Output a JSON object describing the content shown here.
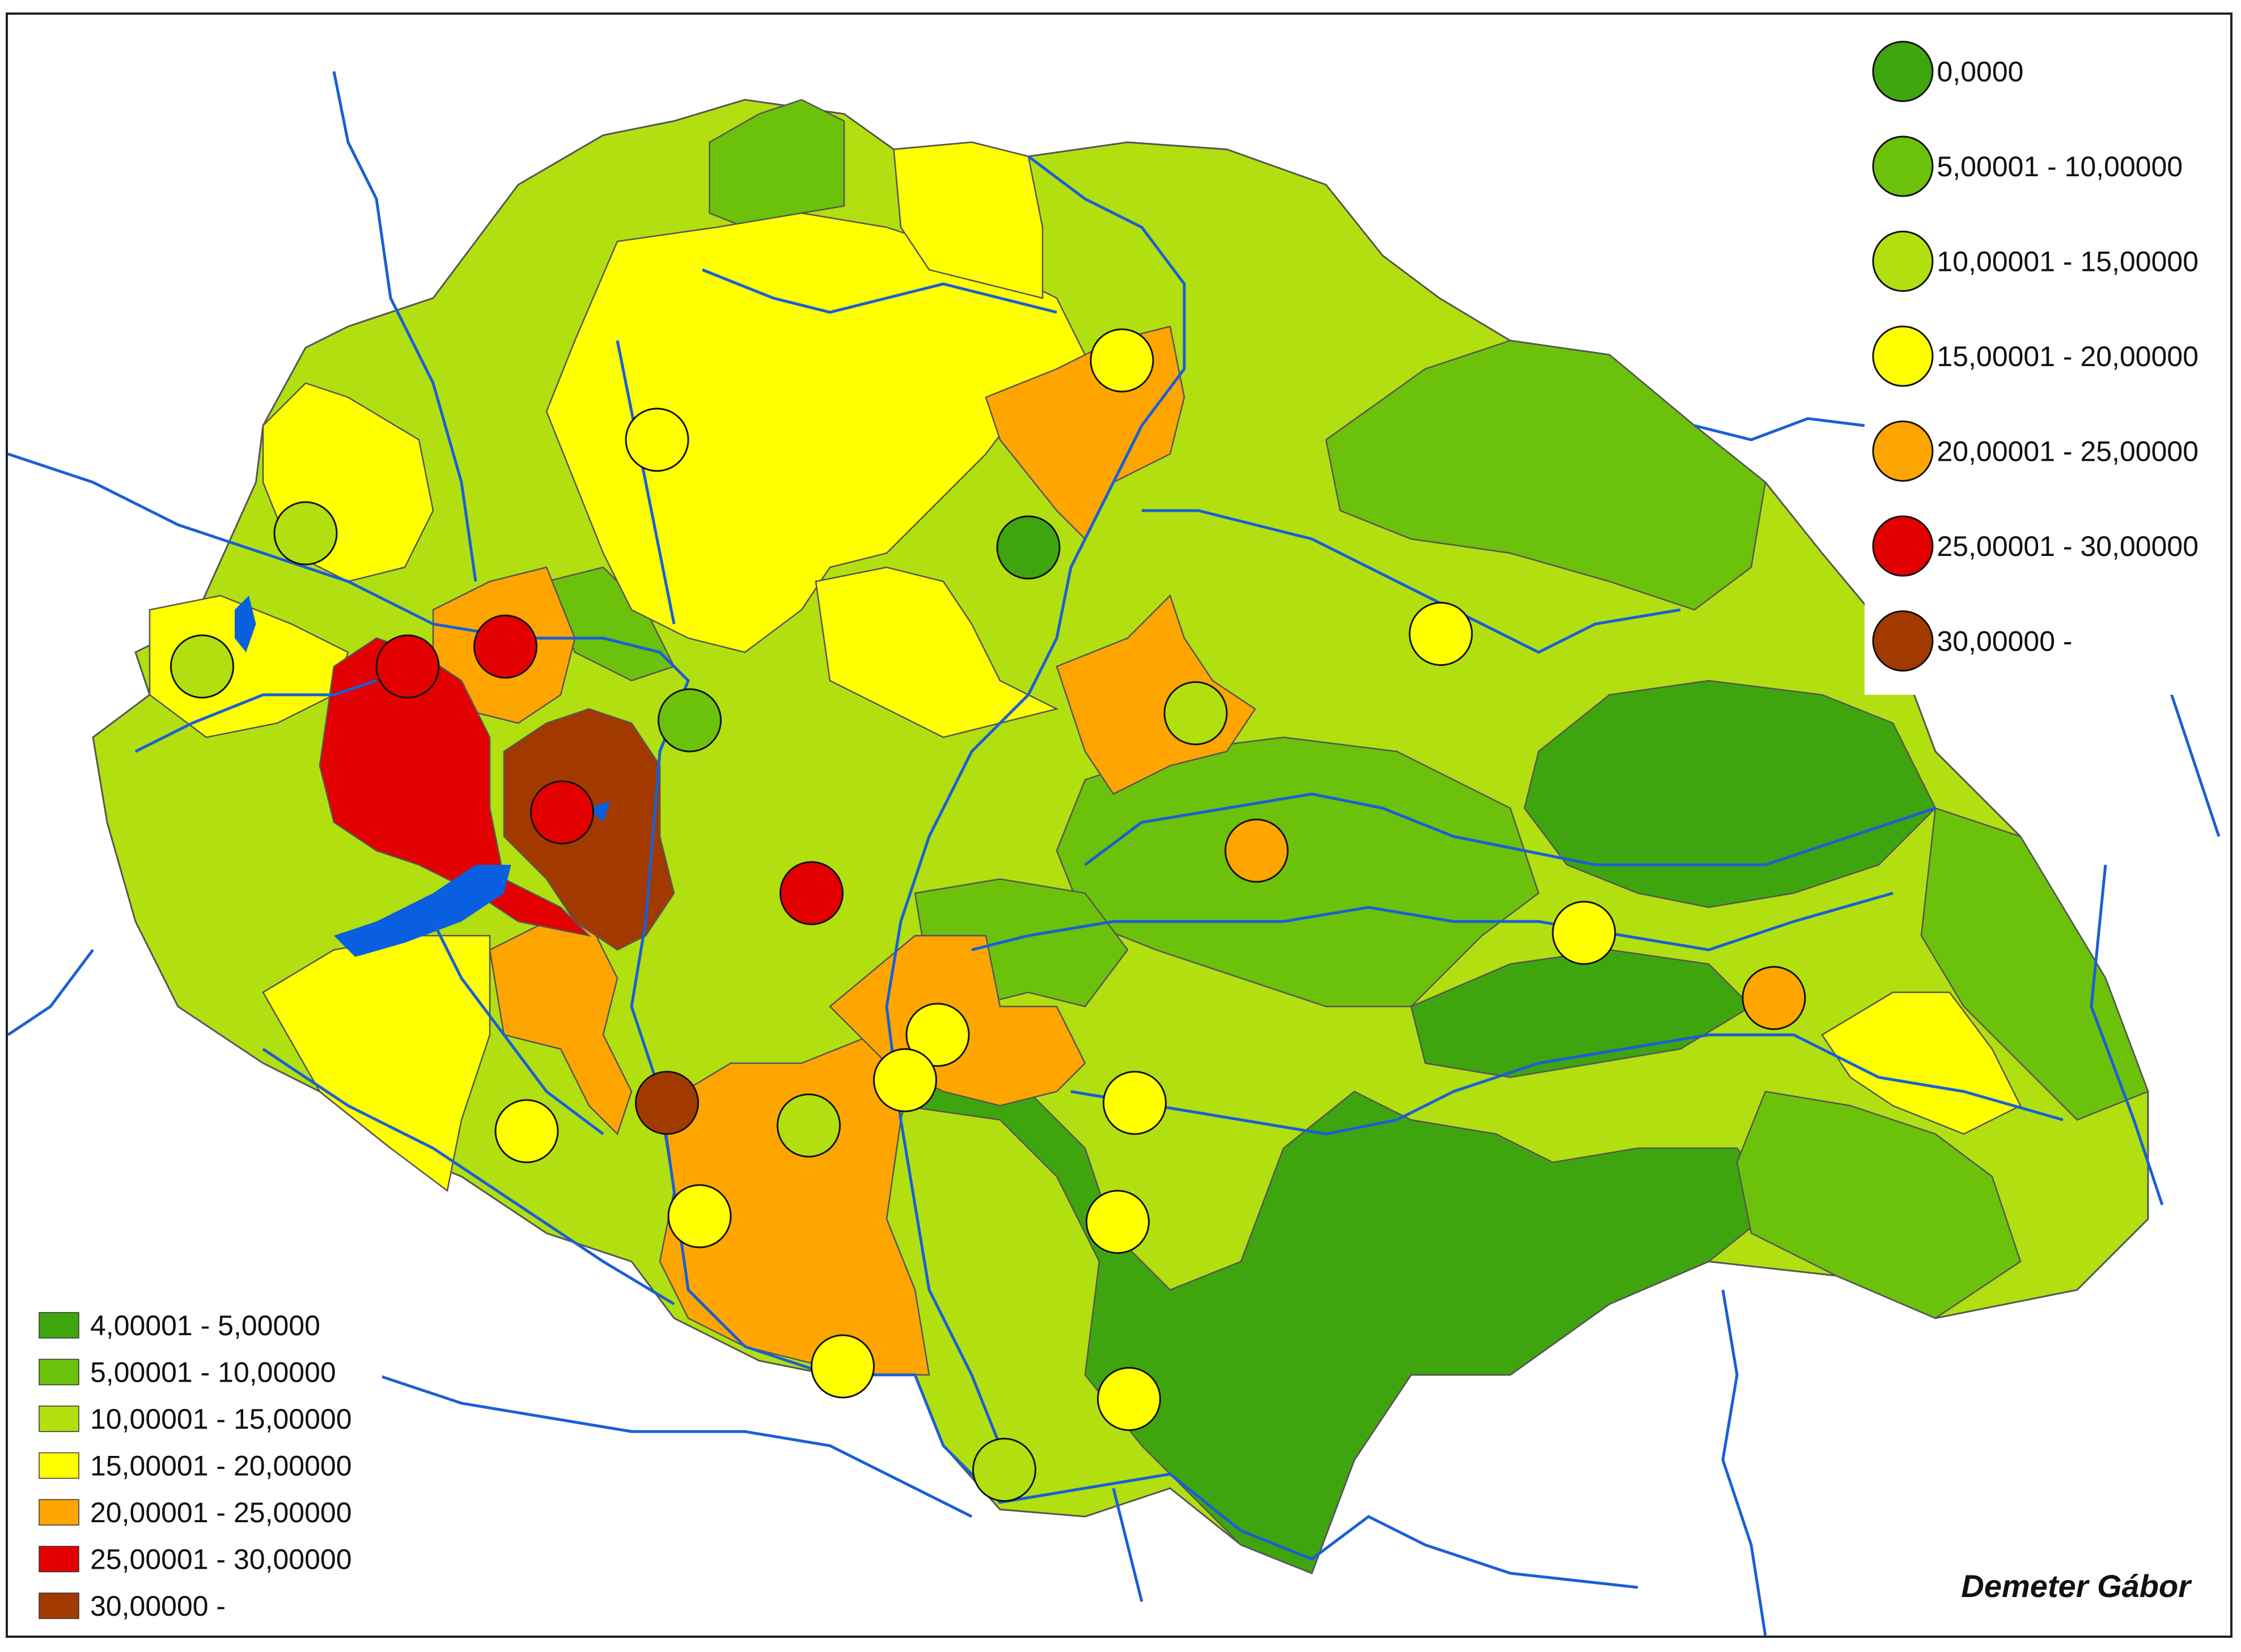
{
  "region_legend": {
    "items": [
      {
        "label": "4,00001 - 5,00000",
        "color": "#3fa50f"
      },
      {
        "label": "5,00001 - 10,00000",
        "color": "#6cc10a"
      },
      {
        "label": "10,00001 - 15,00000",
        "color": "#b2df10"
      },
      {
        "label": "15,00001 - 20,00000",
        "color": "#ffff00"
      },
      {
        "label": "20,00001 - 25,00000",
        "color": "#ffa500"
      },
      {
        "label": "25,00001 - 30,00000",
        "color": "#e30000"
      },
      {
        "label": "30,00000 -",
        "color": "#a23a00"
      }
    ]
  },
  "point_legend": {
    "items": [
      {
        "label": "0,0000",
        "color": "#3fa50f"
      },
      {
        "label": "5,00001 - 10,00000",
        "color": "#6cc10a"
      },
      {
        "label": "10,00001 - 15,00000",
        "color": "#b2df10"
      },
      {
        "label": "15,00001 - 20,00000",
        "color": "#ffff00"
      },
      {
        "label": "20,00001 - 25,00000",
        "color": "#ffa500"
      },
      {
        "label": "25,00001 - 30,00000",
        "color": "#e30000"
      },
      {
        "label": "30,00000 -",
        "color": "#a23a00"
      }
    ]
  },
  "author": "Demeter Gábor",
  "colors": {
    "river": "#1a5fd6",
    "lake": "#0a5fe0",
    "border": "#555555"
  }
}
